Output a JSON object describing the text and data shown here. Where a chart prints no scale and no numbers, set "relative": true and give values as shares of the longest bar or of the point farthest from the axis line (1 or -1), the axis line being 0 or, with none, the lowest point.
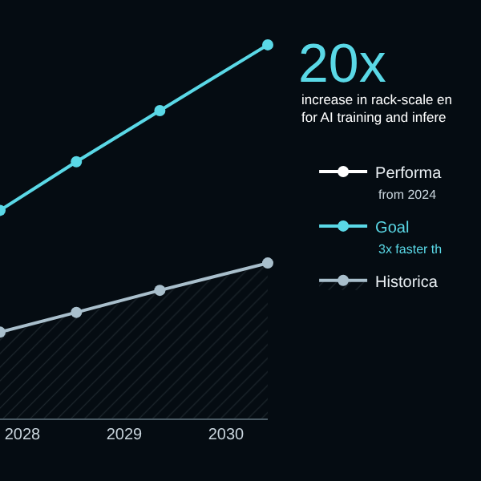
{
  "chart_data": {
    "type": "line",
    "title": "20x",
    "subtitle": "increase in rack-scale en\nfor AI training and infere",
    "x": [
      2027.78,
      2028.53,
      2029.35,
      2030.41
    ],
    "xlim": [
      2027.78,
      2030.41
    ],
    "xticks": [
      2028,
      2029,
      2030
    ],
    "relative": true,
    "series": [
      {
        "name": "Performa",
        "color": "#ffffff",
        "values": [
          null,
          null,
          null,
          null
        ]
      },
      {
        "name": "Goal",
        "color": "#5ad8e6",
        "values": [
          0.557,
          0.687,
          0.824,
          1.0
        ]
      },
      {
        "name": "Historica",
        "color": "#a9bfcc",
        "type": "area",
        "values": [
          0.231,
          0.284,
          0.343,
          0.416
        ]
      }
    ],
    "annotations": [
      "from 2024",
      "3x faster th"
    ],
    "marker": "circle",
    "legend": "right",
    "grid": false
  }
}
